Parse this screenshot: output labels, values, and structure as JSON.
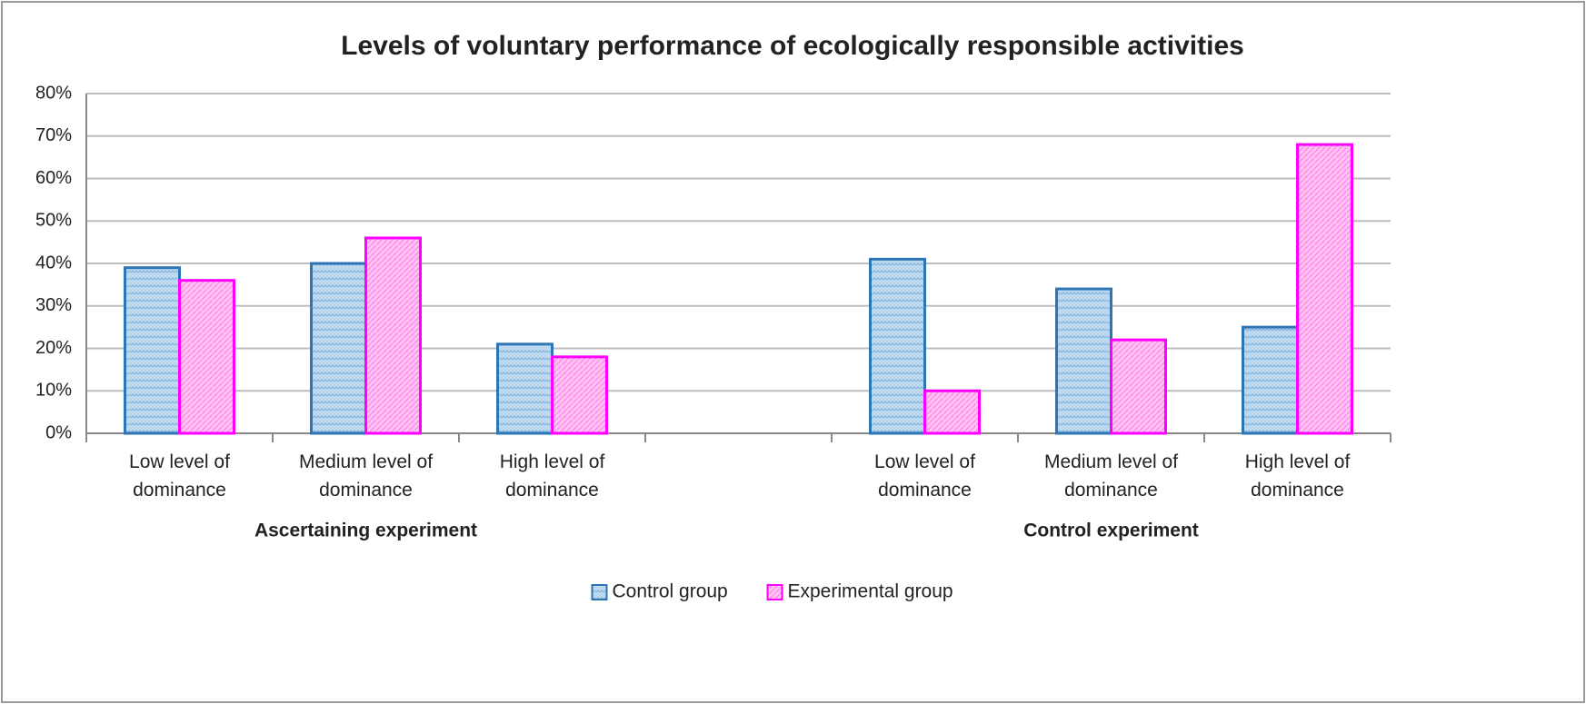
{
  "chart_data": {
    "type": "bar",
    "title": "Levels of voluntary performance of ecologically responsible activities",
    "categories": [
      "Low level of dominance",
      "Medium level of dominance",
      "High level of dominance",
      null,
      "Low level of dominance",
      "Medium level of dominance",
      "High level of dominance"
    ],
    "groups": [
      "Ascertaining experiment",
      "Control experiment"
    ],
    "series": [
      {
        "name": "Control group",
        "color": "#2e75b6",
        "fill": "#bcd9f0",
        "values": [
          39,
          40,
          21,
          null,
          41,
          34,
          25
        ]
      },
      {
        "name": "Experimental group",
        "color": "#ff00ff",
        "fill": "#ffb8f2",
        "values": [
          36,
          46,
          18,
          null,
          10,
          22,
          68
        ]
      }
    ],
    "ylim": [
      0,
      80
    ],
    "yticks": [
      {
        "value": 0,
        "label": "0%"
      },
      {
        "value": 10,
        "label": "10%"
      },
      {
        "value": 20,
        "label": "20%"
      },
      {
        "value": 30,
        "label": "30%"
      },
      {
        "value": 40,
        "label": "40%"
      },
      {
        "value": 50,
        "label": "50%"
      },
      {
        "value": 60,
        "label": "60%"
      },
      {
        "value": 70,
        "label": "70%"
      },
      {
        "value": 80,
        "label": "80%"
      }
    ],
    "grid": true,
    "legend": "bottom"
  }
}
